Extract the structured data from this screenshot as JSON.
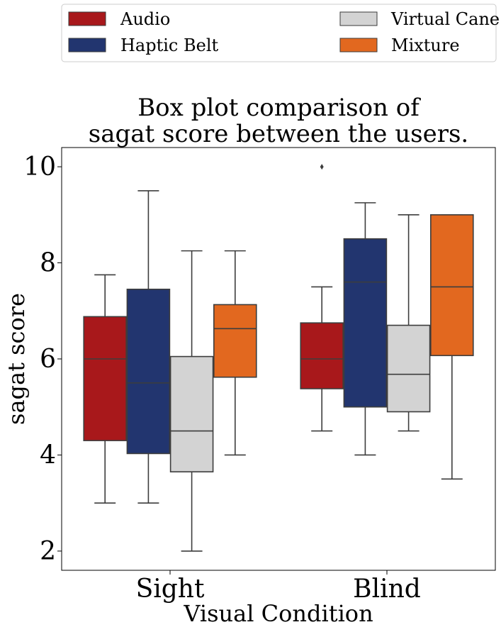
{
  "chart_data": {
    "type": "box",
    "title_lines": [
      "Box plot comparison of",
      "sagat score between the users."
    ],
    "xlabel": "Visual Condition",
    "ylabel": "sagat score",
    "categories": [
      "Sight",
      "Blind"
    ],
    "yticks": [
      2,
      4,
      6,
      8,
      10
    ],
    "ylim": [
      1.6,
      10.4
    ],
    "legend_position": "top (above plot), two columns",
    "grid": false,
    "series": [
      {
        "name": "Audio",
        "color": "#a8181b",
        "boxes": [
          {
            "min": 3.0,
            "q1": 4.3,
            "median": 6.0,
            "q3": 6.88,
            "max": 7.75,
            "outliers": []
          },
          {
            "min": 4.5,
            "q1": 5.38,
            "median": 6.0,
            "q3": 6.75,
            "max": 7.5,
            "outliers": [
              10.0
            ]
          }
        ]
      },
      {
        "name": "Haptic Belt",
        "color": "#22356f",
        "boxes": [
          {
            "min": 3.0,
            "q1": 4.03,
            "median": 5.5,
            "q3": 7.45,
            "max": 9.5,
            "outliers": []
          },
          {
            "min": 4.0,
            "q1": 5.0,
            "median": 7.6,
            "q3": 8.5,
            "max": 9.25,
            "outliers": []
          }
        ]
      },
      {
        "name": "Virtual Cane",
        "color": "#d3d3d3",
        "boxes": [
          {
            "min": 2.0,
            "q1": 3.65,
            "median": 4.5,
            "q3": 6.05,
            "max": 8.25,
            "outliers": []
          },
          {
            "min": 4.5,
            "q1": 4.9,
            "median": 5.68,
            "q3": 6.7,
            "max": 9.0,
            "outliers": []
          }
        ]
      },
      {
        "name": "Mixture",
        "color": "#e2681f",
        "boxes": [
          {
            "min": 4.0,
            "q1": 5.62,
            "median": 6.63,
            "q3": 7.13,
            "max": 8.25,
            "outliers": []
          },
          {
            "min": 3.5,
            "q1": 6.07,
            "median": 7.5,
            "q3": 9.0,
            "max": 9.0,
            "outliers": []
          }
        ]
      }
    ]
  }
}
